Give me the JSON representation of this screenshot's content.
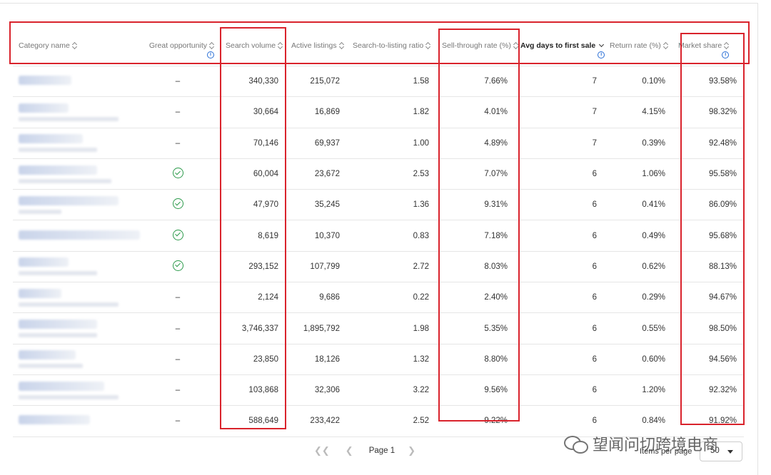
{
  "columns": [
    {
      "label": "Category name"
    },
    {
      "label": "Great opportunity"
    },
    {
      "label": "Search volume"
    },
    {
      "label": "Active listings"
    },
    {
      "label": "Search-to-listing ratio"
    },
    {
      "label": "Sell-through rate (%)"
    },
    {
      "label": "Avg days to first sale"
    },
    {
      "label": "Return rate (%)"
    },
    {
      "label": "Market share"
    }
  ],
  "rows": [
    {
      "great": "–",
      "search_volume": "340,330",
      "active_listings": "215,072",
      "ratio": "1.58",
      "sell_through": "7.66%",
      "avg_days": "7",
      "return_rate": "0.10%",
      "market_share": "93.58%"
    },
    {
      "great": "–",
      "search_volume": "30,664",
      "active_listings": "16,869",
      "ratio": "1.82",
      "sell_through": "4.01%",
      "avg_days": "7",
      "return_rate": "4.15%",
      "market_share": "98.32%"
    },
    {
      "great": "–",
      "search_volume": "70,146",
      "active_listings": "69,937",
      "ratio": "1.00",
      "sell_through": "4.89%",
      "avg_days": "7",
      "return_rate": "0.39%",
      "market_share": "92.48%"
    },
    {
      "great": "check",
      "search_volume": "60,004",
      "active_listings": "23,672",
      "ratio": "2.53",
      "sell_through": "7.07%",
      "avg_days": "6",
      "return_rate": "1.06%",
      "market_share": "95.58%"
    },
    {
      "great": "check",
      "search_volume": "47,970",
      "active_listings": "35,245",
      "ratio": "1.36",
      "sell_through": "9.31%",
      "avg_days": "6",
      "return_rate": "0.41%",
      "market_share": "86.09%"
    },
    {
      "great": "check",
      "search_volume": "8,619",
      "active_listings": "10,370",
      "ratio": "0.83",
      "sell_through": "7.18%",
      "avg_days": "6",
      "return_rate": "0.49%",
      "market_share": "95.68%"
    },
    {
      "great": "check",
      "search_volume": "293,152",
      "active_listings": "107,799",
      "ratio": "2.72",
      "sell_through": "8.03%",
      "avg_days": "6",
      "return_rate": "0.62%",
      "market_share": "88.13%"
    },
    {
      "great": "–",
      "search_volume": "2,124",
      "active_listings": "9,686",
      "ratio": "0.22",
      "sell_through": "2.40%",
      "avg_days": "6",
      "return_rate": "0.29%",
      "market_share": "94.67%"
    },
    {
      "great": "–",
      "search_volume": "3,746,337",
      "active_listings": "1,895,792",
      "ratio": "1.98",
      "sell_through": "5.35%",
      "avg_days": "6",
      "return_rate": "0.55%",
      "market_share": "98.50%"
    },
    {
      "great": "–",
      "search_volume": "23,850",
      "active_listings": "18,126",
      "ratio": "1.32",
      "sell_through": "8.80%",
      "avg_days": "6",
      "return_rate": "0.60%",
      "market_share": "94.56%"
    },
    {
      "great": "–",
      "search_volume": "103,868",
      "active_listings": "32,306",
      "ratio": "3.22",
      "sell_through": "9.56%",
      "avg_days": "6",
      "return_rate": "1.20%",
      "market_share": "92.32%"
    },
    {
      "great": "–",
      "search_volume": "588,649",
      "active_listings": "233,422",
      "ratio": "2.52",
      "sell_through": "9.22%",
      "avg_days": "6",
      "return_rate": "0.84%",
      "market_share": "91.92%"
    }
  ],
  "pagination": {
    "first_icon": "double-chevron-left-icon",
    "prev_icon": "chevron-left-icon",
    "page_label": "Page 1",
    "next_icon": "chevron-right-icon",
    "items_per_page_label": "Items per page",
    "items_per_page_value": "50"
  },
  "watermark": {
    "text": "望闻问切跨境电商",
    "icon": "wechat-icon"
  },
  "colors": {
    "highlight": "#d9232c",
    "check": "#2b9a4a",
    "info": "#2a6fd6"
  }
}
